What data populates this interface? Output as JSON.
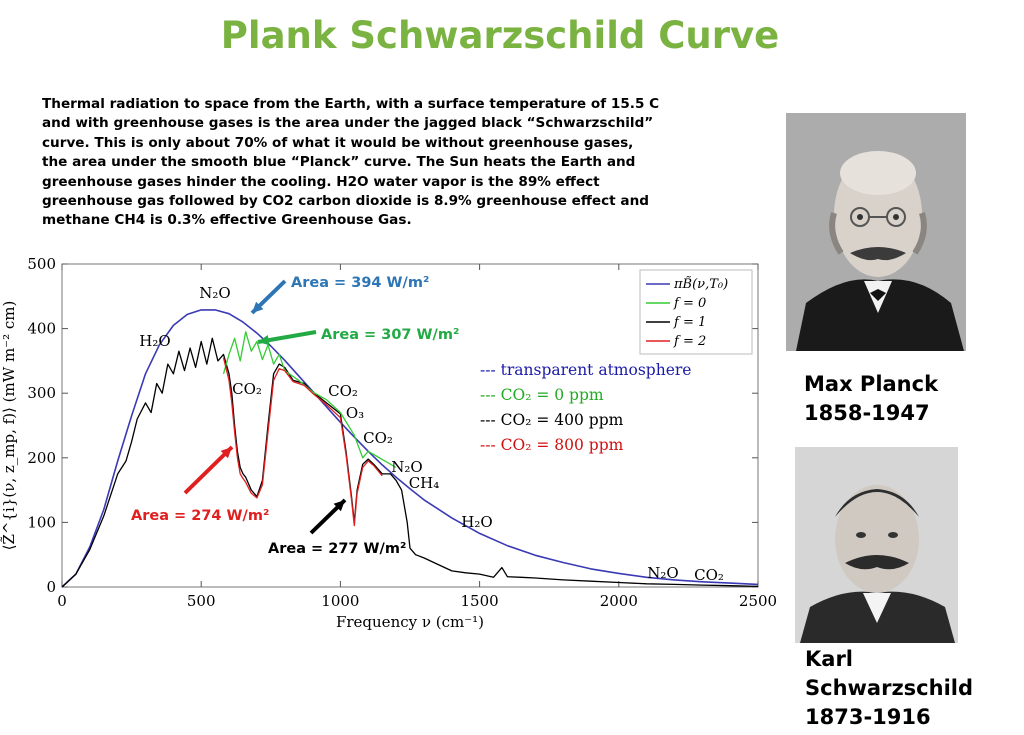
{
  "slide": {
    "title": "Plank Schwarzschild Curve",
    "title_color": "#7bb342",
    "intro_lines": [
      "Thermal radiation to space from the Earth,  with a surface temperature of 15.5 C",
      "and with greenhouse gases  is  the area under the jagged black “Schwarzschild”",
      "curve. This is only about 70% of what it would be without greenhouse gases,",
      "the area under the smooth blue “Planck” curve.  The Sun heats the Earth and",
      "greenhouse gases hinder the cooling. H2O water vapor is the 89% effect",
      "greenhouse gas followed by CO2 carbon dioxide is 8.9% greenhouse effect and",
      "methane CH4 is 0.3% effective Greenhouse Gas."
    ]
  },
  "photos": [
    {
      "name": "Max Planck",
      "years": "1858-1947",
      "icon": "portrait-photo"
    },
    {
      "name": "Karl Schwarzschild",
      "years": "1873-1916",
      "icon": "portrait-photo"
    }
  ],
  "chart_data": {
    "type": "line",
    "xlabel": "Frequency ν (cm⁻¹)",
    "ylabel": "⟨Z̃^{i}(ν, z_mp, f)⟩ (mW m⁻² cm)",
    "xlim": [
      0,
      2500
    ],
    "ylim": [
      0,
      500
    ],
    "xticks": [
      0,
      500,
      1000,
      1500,
      2000,
      2500
    ],
    "yticks": [
      0,
      100,
      200,
      300,
      400,
      500
    ],
    "grid": false,
    "legend_position": "top-right",
    "legend": [
      "πB̃(ν,T₀)",
      "f = 0",
      "f = 1",
      "f = 2"
    ],
    "colors": {
      "planck": "#3a3ab5",
      "f0": "#33cc33",
      "f1": "#000000",
      "f2": "#e02020"
    },
    "series": [
      {
        "name": "πB̃(ν,T₀)",
        "color": "#3a3ab5",
        "x": [
          0,
          50,
          100,
          150,
          200,
          250,
          300,
          350,
          400,
          450,
          500,
          550,
          600,
          650,
          700,
          750,
          800,
          850,
          900,
          950,
          1000,
          1050,
          1100,
          1150,
          1200,
          1250,
          1300,
          1400,
          1500,
          1600,
          1700,
          1800,
          1900,
          2000,
          2100,
          2200,
          2300,
          2400,
          2500
        ],
        "y": [
          0,
          20,
          62,
          120,
          195,
          265,
          330,
          375,
          405,
          422,
          429,
          429,
          423,
          410,
          393,
          373,
          351,
          327,
          303,
          279,
          255,
          232,
          210,
          189,
          170,
          152,
          135,
          107,
          83,
          64,
          49,
          38,
          28,
          21,
          15,
          11,
          8,
          6,
          4
        ]
      },
      {
        "name": "f = 0",
        "color": "#33cc33",
        "x": [
          580,
          600,
          620,
          640,
          660,
          680,
          700,
          720,
          740,
          760,
          780,
          800,
          850,
          900,
          950,
          1000,
          1050,
          1080,
          1100,
          1200
        ],
        "y": [
          330,
          360,
          385,
          350,
          395,
          365,
          380,
          352,
          375,
          345,
          360,
          335,
          320,
          302,
          290,
          270,
          235,
          200,
          210,
          185
        ]
      },
      {
        "name": "f = 1",
        "color": "#000000",
        "x": [
          0,
          50,
          100,
          150,
          200,
          230,
          250,
          270,
          300,
          320,
          340,
          360,
          380,
          400,
          420,
          440,
          460,
          480,
          500,
          520,
          540,
          560,
          580,
          600,
          610,
          620,
          630,
          640,
          650,
          660,
          680,
          700,
          720,
          740,
          760,
          780,
          800,
          830,
          870,
          900,
          950,
          1000,
          1020,
          1040,
          1050,
          1060,
          1080,
          1100,
          1120,
          1150,
          1180,
          1200,
          1220,
          1240,
          1250,
          1270,
          1300,
          1350,
          1400,
          1450,
          1500,
          1550,
          1580,
          1600,
          1650,
          1700,
          1800,
          1900,
          2000,
          2100,
          2200,
          2300,
          2400,
          2500
        ],
        "y": [
          0,
          20,
          58,
          110,
          175,
          195,
          225,
          260,
          285,
          270,
          315,
          300,
          345,
          330,
          365,
          335,
          370,
          340,
          380,
          345,
          385,
          350,
          360,
          330,
          300,
          250,
          210,
          185,
          175,
          170,
          150,
          140,
          165,
          250,
          330,
          345,
          340,
          320,
          315,
          302,
          285,
          268,
          210,
          140,
          100,
          150,
          190,
          198,
          190,
          175,
          175,
          165,
          150,
          100,
          60,
          50,
          45,
          35,
          25,
          22,
          20,
          15,
          30,
          16,
          15,
          14,
          11,
          9,
          7,
          5,
          4,
          3,
          2,
          1
        ]
      },
      {
        "name": "f = 2",
        "color": "#e02020",
        "x": [
          580,
          600,
          610,
          620,
          630,
          640,
          650,
          660,
          680,
          700,
          720,
          740,
          760,
          780,
          800,
          830,
          870,
          900,
          950,
          1000,
          1020,
          1040,
          1050,
          1060,
          1080,
          1100,
          1120,
          1150
        ],
        "y": [
          355,
          320,
          285,
          240,
          200,
          175,
          168,
          162,
          145,
          138,
          158,
          240,
          320,
          338,
          335,
          318,
          312,
          300,
          282,
          262,
          205,
          135,
          95,
          145,
          185,
          195,
          188,
          172
        ]
      }
    ],
    "molecule_labels": [
      "N₂O",
      "H₂O",
      "CO₂",
      "CO₂",
      "O₃",
      "CO₂",
      "N₂O",
      "CH₄",
      "H₂O",
      "N₂O",
      "CO₂"
    ],
    "area_annotations": [
      {
        "text": "Area = 394 W/m²",
        "color": "#2e75b6"
      },
      {
        "text": "Area = 307 W/m²",
        "color": "#22aa44"
      },
      {
        "text": "Area = 274 W/m²",
        "color": "#e02020"
      },
      {
        "text": "Area = 277 W/m²",
        "color": "#000000"
      }
    ],
    "scenario_legend": [
      {
        "text": "--- transparent atmosphere",
        "color": "#1a1aa8"
      },
      {
        "text": "--- CO₂ = 0 ppm",
        "color": "#22aa22"
      },
      {
        "text": "--- CO₂ = 400 ppm",
        "color": "#000000"
      },
      {
        "text": "--- CO₂ = 800 ppm",
        "color": "#d01010"
      }
    ]
  }
}
